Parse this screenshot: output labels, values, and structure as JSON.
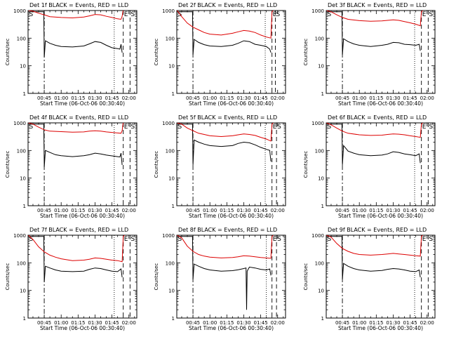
{
  "common": {
    "ylabel": "Counts/sec",
    "xlabel": "Start Time (06-Oct-06 00:30:40)",
    "x_ticks": [
      "00:45",
      "01:00",
      "01:15",
      "01:30",
      "01:45",
      "02:00"
    ],
    "x_tick_minutes": [
      45,
      60,
      75,
      90,
      105,
      120
    ],
    "xlim_minutes": [
      30.67,
      127
    ],
    "y_scale": "log",
    "ylim": [
      1,
      1000
    ],
    "y_ticks": [
      "1",
      "10",
      "100",
      "1000"
    ],
    "y_tick_values": [
      1,
      10,
      100,
      1000
    ],
    "marker_labels": {
      "S": "S",
      "E": "E"
    },
    "colors": {
      "events": "#000000",
      "lld": "#dd0000",
      "axis": "#000000"
    }
  },
  "chart_data": [
    {
      "type": "line",
      "title": "Det 1f BLACK = Events, RED = LLD",
      "series": [
        {
          "name": "Events",
          "x": [
            31,
            40,
            44.6,
            45,
            46,
            50,
            55,
            60,
            70,
            80,
            85,
            90,
            95,
            100,
            105,
            110,
            112,
            113,
            114
          ],
          "y": [
            900,
            900,
            900,
            20,
            80,
            65,
            55,
            50,
            48,
            52,
            62,
            75,
            70,
            55,
            45,
            42,
            40,
            60,
            30
          ]
        },
        {
          "name": "LLD",
          "x": [
            31,
            35,
            40,
            45,
            50,
            60,
            70,
            80,
            85,
            90,
            95,
            100,
            105,
            110,
            113,
            114,
            115,
            116,
            120
          ],
          "y": [
            1000,
            950,
            800,
            700,
            600,
            560,
            540,
            580,
            640,
            720,
            700,
            620,
            560,
            500,
            480,
            620,
            1100,
            1100,
            1100
          ]
        }
      ],
      "markers": [
        {
          "label": "S",
          "x": 31,
          "line": "none"
        },
        {
          "label": "",
          "x": 45,
          "line": "dashdot"
        },
        {
          "label": "",
          "x": 107,
          "line": "dotted"
        },
        {
          "label": "E",
          "x": 115,
          "line": "dashed"
        },
        {
          "label": "S",
          "x": 121,
          "line": "dashed"
        }
      ]
    },
    {
      "type": "line",
      "title": "Det 2f BLACK = Events, RED = LLD",
      "series": [
        {
          "name": "Events",
          "x": [
            31,
            40,
            44.6,
            45,
            46,
            50,
            55,
            60,
            70,
            80,
            85,
            90,
            95,
            100,
            105,
            110,
            113,
            114
          ],
          "y": [
            900,
            900,
            900,
            25,
            90,
            70,
            58,
            52,
            50,
            55,
            65,
            80,
            75,
            60,
            55,
            50,
            40,
            30
          ]
        },
        {
          "name": "LLD",
          "x": [
            31,
            35,
            40,
            45,
            50,
            55,
            60,
            70,
            80,
            85,
            90,
            95,
            100,
            105,
            110,
            114,
            115,
            117,
            120
          ],
          "y": [
            1000,
            600,
            350,
            250,
            200,
            160,
            140,
            130,
            150,
            170,
            190,
            180,
            160,
            130,
            110,
            100,
            900,
            1100,
            1100
          ]
        }
      ],
      "markers": [
        {
          "label": "S",
          "x": 31,
          "line": "none"
        },
        {
          "label": "",
          "x": 45,
          "line": "dashdot"
        },
        {
          "label": "",
          "x": 109,
          "line": "dotted"
        },
        {
          "label": "E",
          "x": 115,
          "line": "dashed"
        },
        {
          "label": "S",
          "x": 118,
          "line": "dashed"
        }
      ]
    },
    {
      "type": "line",
      "title": "Det 3f BLACK = Events, RED = LLD",
      "series": [
        {
          "name": "Events",
          "x": [
            31,
            40,
            44.6,
            45,
            46,
            50,
            55,
            60,
            70,
            80,
            85,
            90,
            95,
            100,
            105,
            110,
            113,
            114
          ],
          "y": [
            900,
            900,
            900,
            25,
            95,
            75,
            62,
            55,
            50,
            55,
            60,
            70,
            68,
            60,
            58,
            55,
            60,
            35
          ]
        },
        {
          "name": "LLD",
          "x": [
            31,
            35,
            40,
            45,
            50,
            60,
            70,
            80,
            85,
            90,
            95,
            100,
            105,
            110,
            114,
            115,
            117,
            120
          ],
          "y": [
            1000,
            900,
            700,
            560,
            480,
            430,
            410,
            420,
            440,
            460,
            440,
            400,
            360,
            320,
            280,
            900,
            1100,
            1100
          ]
        }
      ],
      "markers": [
        {
          "label": "S",
          "x": 31,
          "line": "none"
        },
        {
          "label": "",
          "x": 45,
          "line": "dashdot"
        },
        {
          "label": "",
          "x": 109,
          "line": "dotted"
        },
        {
          "label": "E",
          "x": 115,
          "line": "dashed"
        },
        {
          "label": "S",
          "x": 121,
          "line": "dashed"
        }
      ]
    },
    {
      "type": "line",
      "title": "Det 4f BLACK = Events, RED = LLD",
      "series": [
        {
          "name": "Events",
          "x": [
            31,
            40,
            44.6,
            45,
            46,
            50,
            55,
            60,
            70,
            80,
            85,
            90,
            95,
            100,
            105,
            110,
            112,
            113,
            114
          ],
          "y": [
            900,
            900,
            900,
            25,
            100,
            85,
            70,
            65,
            60,
            65,
            70,
            80,
            75,
            68,
            64,
            60,
            58,
            80,
            30
          ]
        },
        {
          "name": "LLD",
          "x": [
            31,
            35,
            40,
            45,
            50,
            60,
            70,
            80,
            85,
            90,
            95,
            100,
            105,
            110,
            113,
            114,
            115,
            117,
            120
          ],
          "y": [
            1000,
            900,
            700,
            560,
            500,
            480,
            460,
            470,
            500,
            520,
            500,
            470,
            450,
            430,
            420,
            520,
            1100,
            1100,
            1100
          ]
        }
      ],
      "markers": [
        {
          "label": "S",
          "x": 31,
          "line": "none"
        },
        {
          "label": "",
          "x": 45,
          "line": "dashdot"
        },
        {
          "label": "",
          "x": 107,
          "line": "dotted"
        },
        {
          "label": "E",
          "x": 115,
          "line": "dashed"
        },
        {
          "label": "S",
          "x": 121,
          "line": "dashed"
        }
      ]
    },
    {
      "type": "line",
      "title": "Det 5f BLACK = Events, RED = LLD",
      "series": [
        {
          "name": "Events",
          "x": [
            31,
            40,
            44.6,
            45,
            46,
            50,
            55,
            60,
            70,
            80,
            85,
            90,
            95,
            100,
            105,
            110,
            113,
            114
          ],
          "y": [
            900,
            900,
            900,
            30,
            240,
            200,
            170,
            150,
            140,
            150,
            180,
            200,
            190,
            160,
            130,
            110,
            100,
            40
          ]
        },
        {
          "name": "LLD",
          "x": [
            31,
            35,
            40,
            45,
            50,
            55,
            60,
            70,
            80,
            85,
            90,
            95,
            100,
            105,
            110,
            114,
            115,
            117,
            120
          ],
          "y": [
            1000,
            900,
            650,
            520,
            420,
            380,
            340,
            320,
            340,
            370,
            400,
            380,
            350,
            300,
            260,
            220,
            900,
            1100,
            1100
          ]
        }
      ],
      "markers": [
        {
          "label": "S",
          "x": 31,
          "line": "none"
        },
        {
          "label": "",
          "x": 45,
          "line": "dashdot"
        },
        {
          "label": "",
          "x": 109,
          "line": "dotted"
        },
        {
          "label": "E",
          "x": 115,
          "line": "dashed"
        },
        {
          "label": "S",
          "x": 119,
          "line": "dashed"
        }
      ]
    },
    {
      "type": "line",
      "title": "Det 6f BLACK = Events, RED = LLD",
      "series": [
        {
          "name": "Events",
          "x": [
            31,
            40,
            44.6,
            45,
            46,
            48,
            50,
            55,
            60,
            70,
            80,
            85,
            90,
            95,
            100,
            105,
            110,
            113,
            114
          ],
          "y": [
            900,
            900,
            900,
            30,
            150,
            120,
            95,
            80,
            70,
            65,
            68,
            75,
            90,
            85,
            75,
            70,
            65,
            75,
            35
          ]
        },
        {
          "name": "LLD",
          "x": [
            31,
            35,
            40,
            45,
            50,
            60,
            70,
            80,
            85,
            90,
            95,
            100,
            105,
            110,
            114,
            115,
            117,
            120
          ],
          "y": [
            1000,
            850,
            650,
            500,
            420,
            370,
            350,
            360,
            380,
            400,
            390,
            370,
            340,
            320,
            300,
            900,
            1100,
            1100
          ]
        }
      ],
      "markers": [
        {
          "label": "S",
          "x": 31,
          "line": "none"
        },
        {
          "label": "",
          "x": 45,
          "line": "dashdot"
        },
        {
          "label": "",
          "x": 109,
          "line": "dotted"
        },
        {
          "label": "E",
          "x": 115,
          "line": "dashed"
        },
        {
          "label": "S",
          "x": 121,
          "line": "dashed"
        }
      ]
    },
    {
      "type": "line",
      "title": "Det 7f BLACK = Events, RED = LLD",
      "series": [
        {
          "name": "Events",
          "x": [
            31,
            40,
            44.6,
            45,
            46,
            50,
            55,
            60,
            70,
            80,
            85,
            90,
            95,
            100,
            105,
            110,
            113,
            114
          ],
          "y": [
            900,
            900,
            900,
            20,
            75,
            65,
            55,
            50,
            48,
            50,
            58,
            65,
            62,
            55,
            50,
            48,
            60,
            30
          ]
        },
        {
          "name": "LLD",
          "x": [
            31,
            35,
            40,
            45,
            50,
            55,
            60,
            70,
            80,
            85,
            90,
            95,
            100,
            105,
            110,
            114,
            115,
            117,
            120
          ],
          "y": [
            1000,
            700,
            380,
            250,
            190,
            160,
            140,
            120,
            125,
            135,
            150,
            145,
            135,
            125,
            120,
            110,
            900,
            1100,
            1100
          ]
        }
      ],
      "markers": [
        {
          "label": "S",
          "x": 31,
          "line": "none"
        },
        {
          "label": "",
          "x": 45,
          "line": "dashdot"
        },
        {
          "label": "",
          "x": 107,
          "line": "dotted"
        },
        {
          "label": "E",
          "x": 115,
          "line": "dashed"
        },
        {
          "label": "S",
          "x": 121,
          "line": "dashed"
        }
      ]
    },
    {
      "type": "line",
      "title": "Det 8f BLACK = Events, RED = LLD",
      "series": [
        {
          "name": "Events",
          "x": [
            31,
            40,
            44.6,
            45,
            46,
            50,
            55,
            60,
            70,
            80,
            85,
            90,
            92,
            92.5,
            93,
            95,
            100,
            105,
            110,
            113,
            114
          ],
          "y": [
            900,
            900,
            900,
            25,
            90,
            75,
            62,
            55,
            50,
            52,
            56,
            62,
            65,
            2,
            50,
            70,
            65,
            58,
            55,
            60,
            35
          ]
        },
        {
          "name": "LLD",
          "x": [
            31,
            35,
            40,
            45,
            50,
            55,
            60,
            70,
            80,
            85,
            90,
            95,
            100,
            105,
            110,
            114,
            115,
            117,
            120
          ],
          "y": [
            1000,
            800,
            400,
            260,
            200,
            175,
            160,
            150,
            155,
            165,
            180,
            175,
            165,
            155,
            150,
            145,
            900,
            1100,
            1100
          ]
        }
      ],
      "markers": [
        {
          "label": "S",
          "x": 31,
          "line": "none"
        },
        {
          "label": "",
          "x": 45,
          "line": "dashdot"
        },
        {
          "label": "",
          "x": 110,
          "line": "dotted"
        },
        {
          "label": "E",
          "x": 115,
          "line": "dashed"
        },
        {
          "label": "S",
          "x": 119,
          "line": "dashed"
        }
      ]
    },
    {
      "type": "line",
      "title": "Det 9f BLACK = Events, RED = LLD",
      "series": [
        {
          "name": "Events",
          "x": [
            31,
            40,
            44.6,
            45,
            46,
            50,
            55,
            60,
            70,
            80,
            85,
            90,
            95,
            100,
            105,
            110,
            113,
            114
          ],
          "y": [
            900,
            900,
            900,
            25,
            95,
            75,
            62,
            55,
            50,
            53,
            58,
            62,
            60,
            55,
            50,
            48,
            55,
            30
          ]
        },
        {
          "name": "LLD",
          "x": [
            31,
            35,
            40,
            45,
            50,
            55,
            60,
            70,
            80,
            85,
            90,
            95,
            100,
            105,
            110,
            114,
            115,
            117,
            120
          ],
          "y": [
            1000,
            850,
            500,
            330,
            260,
            220,
            200,
            190,
            200,
            210,
            220,
            210,
            200,
            190,
            180,
            175,
            900,
            1100,
            1100
          ]
        }
      ],
      "markers": [
        {
          "label": "S",
          "x": 31,
          "line": "none"
        },
        {
          "label": "",
          "x": 45,
          "line": "dashdot"
        },
        {
          "label": "",
          "x": 109,
          "line": "dotted"
        },
        {
          "label": "E",
          "x": 115,
          "line": "dashed"
        },
        {
          "label": "S",
          "x": 121,
          "line": "dashed"
        }
      ]
    }
  ]
}
